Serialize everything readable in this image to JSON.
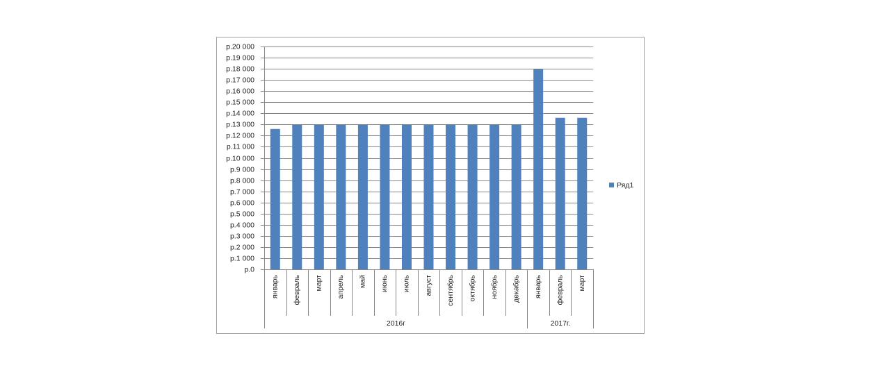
{
  "chart_data": {
    "type": "bar",
    "groups": [
      {
        "name": "2016г",
        "categories": [
          "январь",
          "февраль",
          "март",
          "апрель",
          "май",
          "июнь",
          "июль",
          "август",
          "сентябрь",
          "октябрь",
          "ноябрь",
          "декабрь"
        ]
      },
      {
        "name": "2017г.",
        "categories": [
          "январь",
          "февраль",
          "март"
        ]
      }
    ],
    "series": [
      {
        "name": "Ряд1",
        "color": "#4f81bd",
        "values": [
          12600,
          13000,
          13000,
          13000,
          13000,
          13000,
          13000,
          13000,
          13000,
          13000,
          13000,
          13000,
          18000,
          13600,
          13600
        ]
      }
    ],
    "ylim": [
      0,
      20000
    ],
    "yticks": [
      {
        "value": 0,
        "label": "р.0"
      },
      {
        "value": 1000,
        "label": "р.1 000"
      },
      {
        "value": 2000,
        "label": "р.2 000"
      },
      {
        "value": 3000,
        "label": "р.3 000"
      },
      {
        "value": 4000,
        "label": "р.4 000"
      },
      {
        "value": 5000,
        "label": "р.5 000"
      },
      {
        "value": 6000,
        "label": "р.6 000"
      },
      {
        "value": 7000,
        "label": "р.7 000"
      },
      {
        "value": 8000,
        "label": "р.8 000"
      },
      {
        "value": 9000,
        "label": "р.9 000"
      },
      {
        "value": 10000,
        "label": "р.10 000"
      },
      {
        "value": 11000,
        "label": "р.11 000"
      },
      {
        "value": 12000,
        "label": "р.12 000"
      },
      {
        "value": 13000,
        "label": "р.13 000"
      },
      {
        "value": 14000,
        "label": "р.14 000"
      },
      {
        "value": 15000,
        "label": "р.15 000"
      },
      {
        "value": 16000,
        "label": "р.16 000"
      },
      {
        "value": 17000,
        "label": "р.17 000"
      },
      {
        "value": 18000,
        "label": "р.18 000"
      },
      {
        "value": 19000,
        "label": "р.19 000"
      },
      {
        "value": 20000,
        "label": "р.20 000"
      }
    ],
    "grid": true,
    "legend": "right"
  }
}
